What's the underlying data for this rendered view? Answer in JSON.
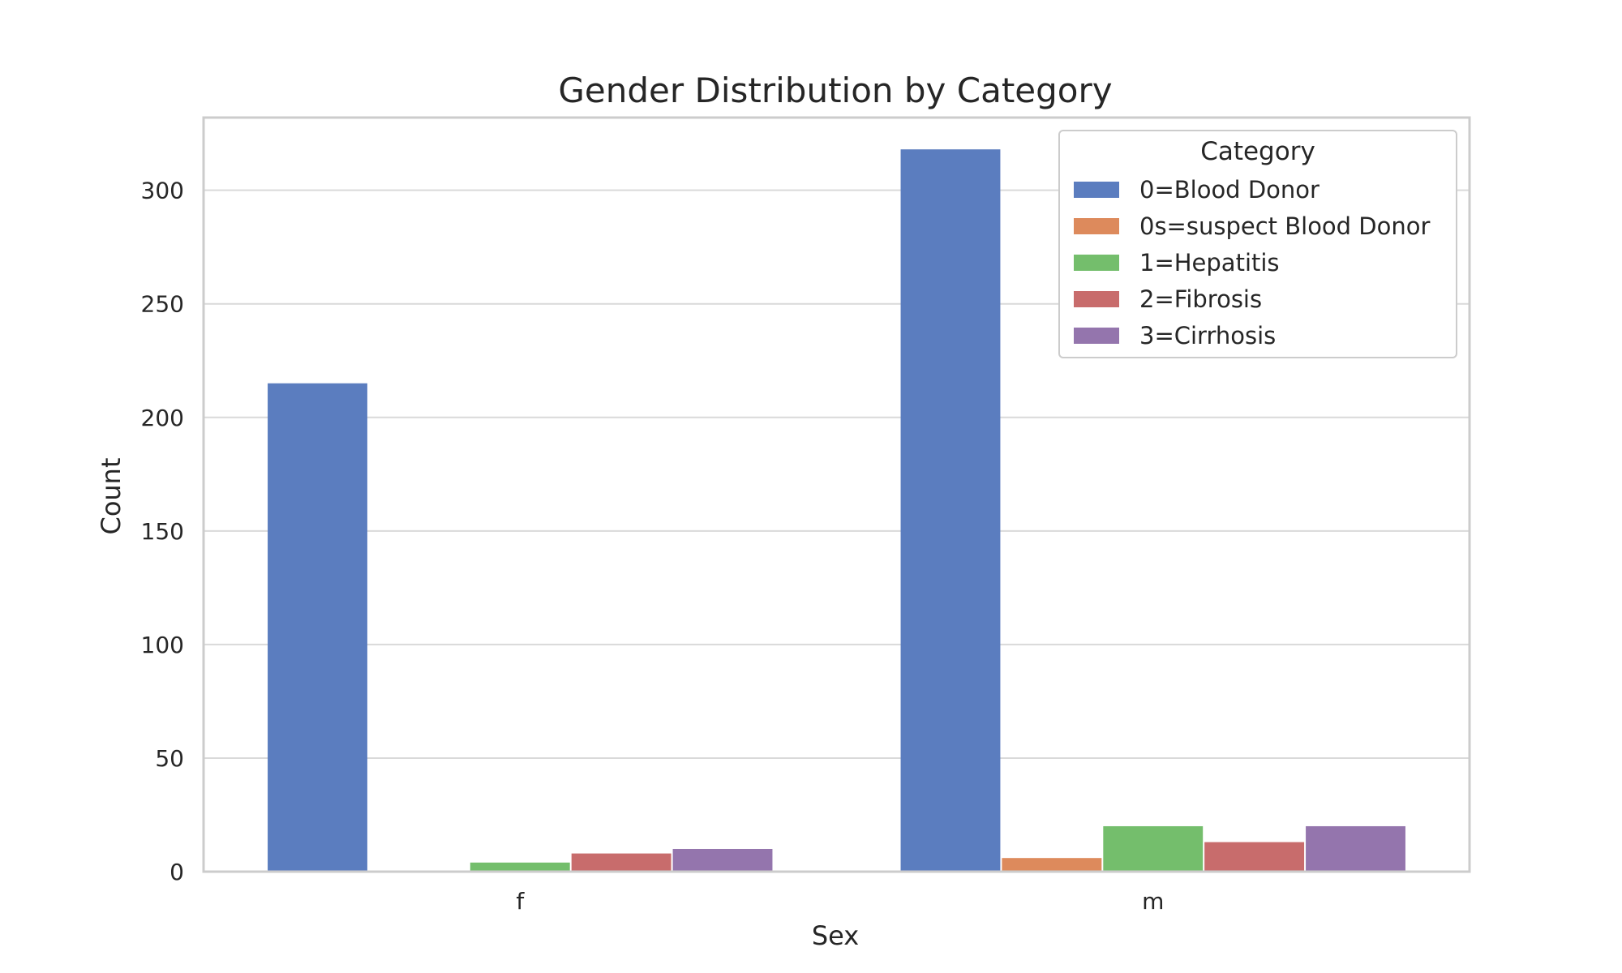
{
  "chart_data": {
    "type": "bar",
    "title": "Gender Distribution by Category",
    "xlabel": "Sex",
    "ylabel": "Count",
    "categories": [
      "f",
      "m"
    ],
    "ylim": [
      0,
      332
    ],
    "yticks": [
      0,
      50,
      100,
      150,
      200,
      250,
      300
    ],
    "grid": true,
    "legend": {
      "title": "Category",
      "placement": "top-right"
    },
    "series": [
      {
        "name": "0=Blood Donor",
        "color": "#5b7dbf",
        "values": [
          215,
          318
        ]
      },
      {
        "name": "0s=suspect Blood Donor",
        "color": "#dd8a5c",
        "values": [
          0,
          6
        ]
      },
      {
        "name": "1=Hepatitis",
        "color": "#74be6c",
        "values": [
          4,
          20
        ]
      },
      {
        "name": "2=Fibrosis",
        "color": "#c86c6c",
        "values": [
          8,
          13
        ]
      },
      {
        "name": "3=Cirrhosis",
        "color": "#9475ad",
        "values": [
          10,
          20
        ]
      }
    ]
  }
}
